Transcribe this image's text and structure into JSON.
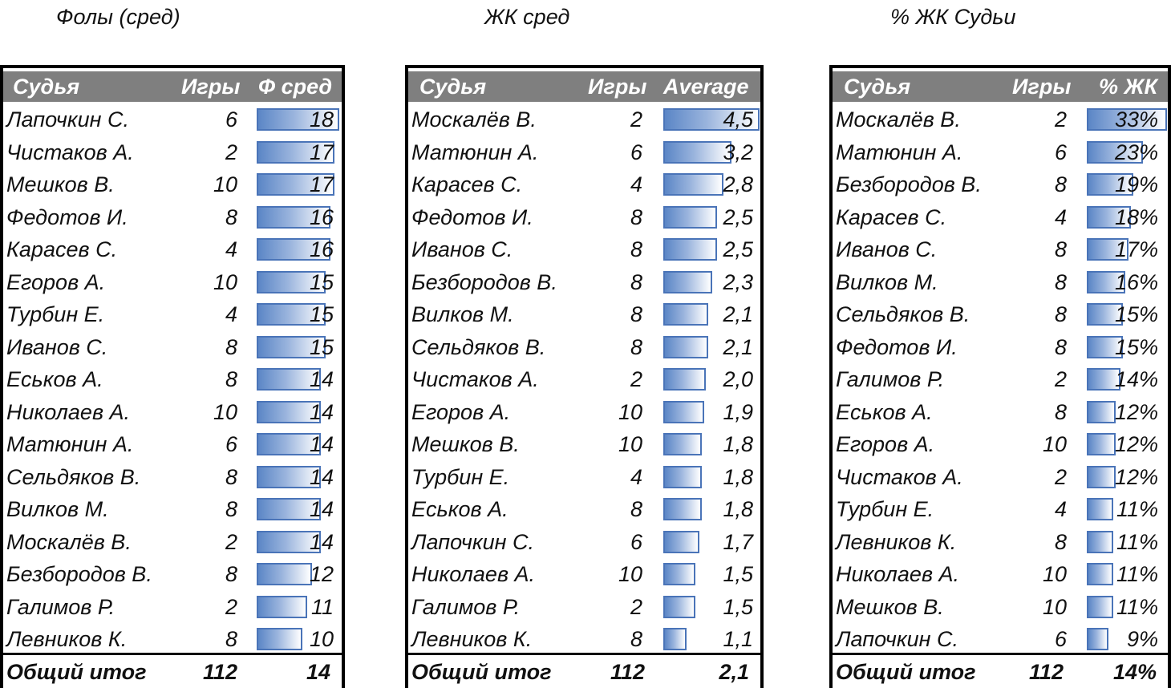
{
  "chart_data": [
    {
      "type": "table",
      "title": "Фолы (сред)",
      "columns": [
        "Судья",
        "Игры",
        "Ф сред"
      ],
      "scale_max": 18.5,
      "rows": [
        {
          "name": "Лапочкин С.",
          "games": "6",
          "value": 18,
          "label": "18"
        },
        {
          "name": "Чистаков А.",
          "games": "2",
          "value": 17,
          "label": "17"
        },
        {
          "name": "Мешков В.",
          "games": "10",
          "value": 17,
          "label": "17"
        },
        {
          "name": "Федотов И.",
          "games": "8",
          "value": 16,
          "label": "16"
        },
        {
          "name": "Карасев С.",
          "games": "4",
          "value": 16,
          "label": "16"
        },
        {
          "name": "Егоров А.",
          "games": "10",
          "value": 15,
          "label": "15"
        },
        {
          "name": "Турбин Е.",
          "games": "4",
          "value": 15,
          "label": "15"
        },
        {
          "name": "Иванов С.",
          "games": "8",
          "value": 15,
          "label": "15"
        },
        {
          "name": "Еськов А.",
          "games": "8",
          "value": 14,
          "label": "14"
        },
        {
          "name": "Николаев А.",
          "games": "10",
          "value": 14,
          "label": "14"
        },
        {
          "name": "Матюнин А.",
          "games": "6",
          "value": 14,
          "label": "14"
        },
        {
          "name": "Сельдяков В.",
          "games": "8",
          "value": 14,
          "label": "14"
        },
        {
          "name": "Вилков М.",
          "games": "8",
          "value": 14,
          "label": "14"
        },
        {
          "name": "Москалёв В.",
          "games": "2",
          "value": 14,
          "label": "14"
        },
        {
          "name": "Безбородов В.",
          "games": "8",
          "value": 12,
          "label": "12"
        },
        {
          "name": "Галимов Р.",
          "games": "2",
          "value": 11,
          "label": "11"
        },
        {
          "name": "Левников К.",
          "games": "8",
          "value": 10,
          "label": "10"
        }
      ],
      "total": {
        "label": "Общий итог",
        "games": "112",
        "value": "14"
      }
    },
    {
      "type": "table",
      "title": "ЖК сред",
      "columns": [
        "Судья",
        "Игры",
        "Average"
      ],
      "scale_max": 4.5,
      "rows": [
        {
          "name": "Москалёв В.",
          "games": "2",
          "value": 4.5,
          "label": "4,5"
        },
        {
          "name": "Матюнин А.",
          "games": "6",
          "value": 3.2,
          "label": "3,2"
        },
        {
          "name": "Карасев С.",
          "games": "4",
          "value": 2.8,
          "label": "2,8"
        },
        {
          "name": "Федотов И.",
          "games": "8",
          "value": 2.5,
          "label": "2,5"
        },
        {
          "name": "Иванов С.",
          "games": "8",
          "value": 2.5,
          "label": "2,5"
        },
        {
          "name": "Безбородов В.",
          "games": "8",
          "value": 2.3,
          "label": "2,3"
        },
        {
          "name": "Вилков М.",
          "games": "8",
          "value": 2.1,
          "label": "2,1"
        },
        {
          "name": "Сельдяков В.",
          "games": "8",
          "value": 2.1,
          "label": "2,1"
        },
        {
          "name": "Чистаков А.",
          "games": "2",
          "value": 2.0,
          "label": "2,0"
        },
        {
          "name": "Егоров А.",
          "games": "10",
          "value": 1.9,
          "label": "1,9"
        },
        {
          "name": "Мешков В.",
          "games": "10",
          "value": 1.8,
          "label": "1,8"
        },
        {
          "name": "Турбин Е.",
          "games": "4",
          "value": 1.8,
          "label": "1,8"
        },
        {
          "name": "Еськов А.",
          "games": "8",
          "value": 1.8,
          "label": "1,8"
        },
        {
          "name": "Лапочкин С.",
          "games": "6",
          "value": 1.7,
          "label": "1,7"
        },
        {
          "name": "Николаев А.",
          "games": "10",
          "value": 1.5,
          "label": "1,5"
        },
        {
          "name": "Галимов Р.",
          "games": "2",
          "value": 1.5,
          "label": "1,5"
        },
        {
          "name": "Левников К.",
          "games": "8",
          "value": 1.1,
          "label": "1,1"
        }
      ],
      "total": {
        "label": "Общий итог",
        "games": "112",
        "value": "2,1"
      }
    },
    {
      "type": "table",
      "title": "% ЖК Судьи",
      "columns": [
        "Судья",
        "Игры",
        "% ЖК"
      ],
      "scale_max": 33,
      "rows": [
        {
          "name": "Москалёв В.",
          "games": "2",
          "value": 33,
          "label": "33%"
        },
        {
          "name": "Матюнин А.",
          "games": "6",
          "value": 23,
          "label": "23%"
        },
        {
          "name": "Безбородов В.",
          "games": "8",
          "value": 19,
          "label": "19%"
        },
        {
          "name": "Карасев С.",
          "games": "4",
          "value": 18,
          "label": "18%"
        },
        {
          "name": "Иванов С.",
          "games": "8",
          "value": 17,
          "label": "17%"
        },
        {
          "name": "Вилков М.",
          "games": "8",
          "value": 16,
          "label": "16%"
        },
        {
          "name": "Сельдяков В.",
          "games": "8",
          "value": 15,
          "label": "15%"
        },
        {
          "name": "Федотов И.",
          "games": "8",
          "value": 15,
          "label": "15%"
        },
        {
          "name": "Галимов Р.",
          "games": "2",
          "value": 14,
          "label": "14%"
        },
        {
          "name": "Еськов А.",
          "games": "8",
          "value": 12,
          "label": "12%"
        },
        {
          "name": "Егоров А.",
          "games": "10",
          "value": 12,
          "label": "12%"
        },
        {
          "name": "Чистаков А.",
          "games": "2",
          "value": 12,
          "label": "12%"
        },
        {
          "name": "Турбин Е.",
          "games": "4",
          "value": 11,
          "label": "11%"
        },
        {
          "name": "Левников К.",
          "games": "8",
          "value": 11,
          "label": "11%"
        },
        {
          "name": "Николаев А.",
          "games": "10",
          "value": 11,
          "label": "11%"
        },
        {
          "name": "Мешков В.",
          "games": "10",
          "value": 11,
          "label": "11%"
        },
        {
          "name": "Лапочкин С.",
          "games": "6",
          "value": 9,
          "label": "9%"
        }
      ],
      "total": {
        "label": "Общий итог",
        "games": "112",
        "value": "14%"
      }
    }
  ],
  "colors": {
    "header_bg": "#7f7f7f",
    "bar_start": "#5b86c6",
    "bar_border": "#4a74b8"
  }
}
